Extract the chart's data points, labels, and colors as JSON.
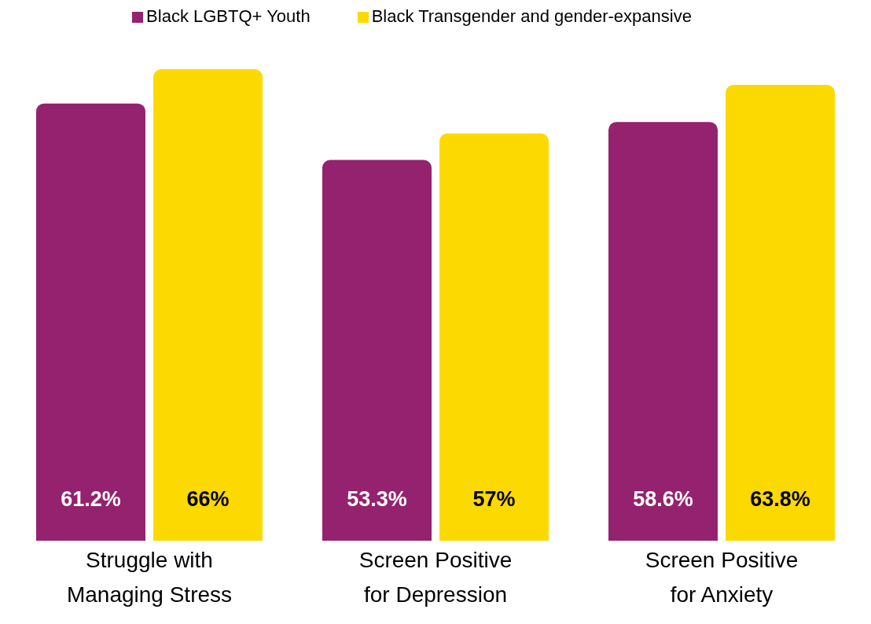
{
  "chart_data": {
    "type": "bar",
    "categories": [
      "Struggle with\nManaging Stress",
      "Screen Positive\nfor Depression",
      "Screen Positive\nfor Anxiety"
    ],
    "series": [
      {
        "name": "Black LGBTQ+ Youth",
        "color": "#94226f",
        "values": [
          61.2,
          53.3,
          58.6
        ],
        "value_labels": [
          "61.2%",
          "53.3%",
          "58.6%"
        ]
      },
      {
        "name": "Black Transgender and gender-expansive",
        "color": "#fcd900",
        "values": [
          66,
          57,
          63.8
        ],
        "value_labels": [
          "66%",
          "57%",
          "63.8%"
        ]
      }
    ],
    "legend": "top",
    "grid": false,
    "tick_labels": "x"
  }
}
